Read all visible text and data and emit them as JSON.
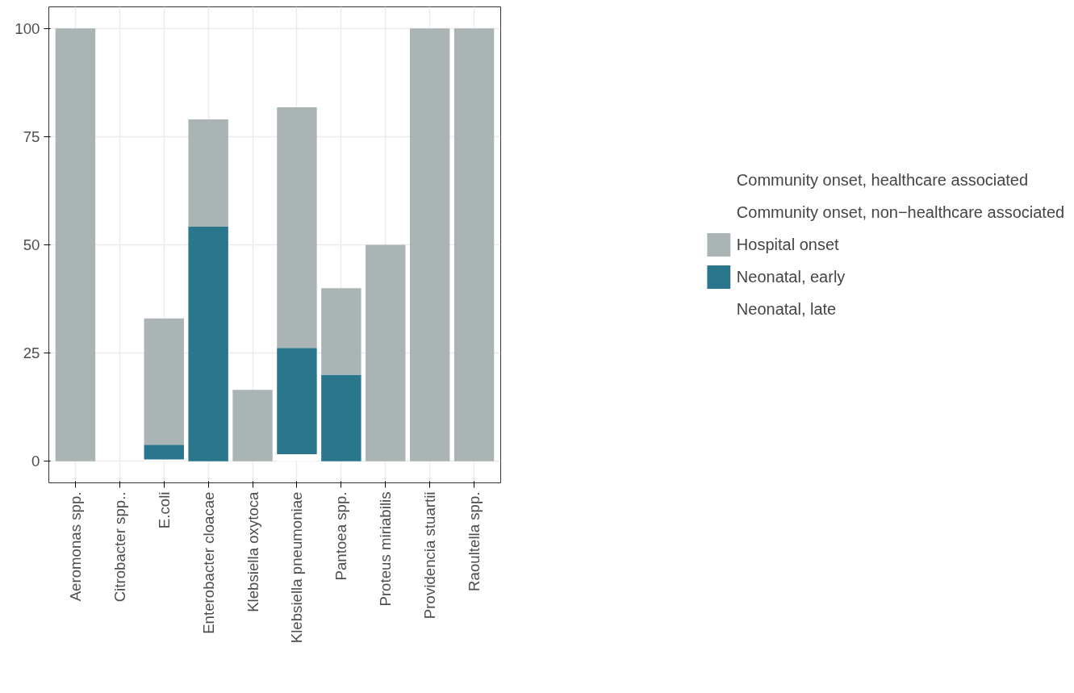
{
  "chart_data": {
    "type": "bar",
    "stacked": true,
    "categories": [
      "Aeromonas spp.",
      "Citrobacter spp..",
      "E.coli",
      "Enterobacter cloacae",
      "Klebsiella oxytoca",
      "Klebsiella pneumoniae",
      "Pantoea spp.",
      "Proteus miriabilis",
      "Providencia stuartii",
      "Raoultella spp."
    ],
    "series": [
      {
        "name": "Neonatal, late",
        "color": "#ffffff",
        "values": [
          null,
          null,
          0.4,
          null,
          null,
          1.6,
          null,
          null,
          null,
          null
        ]
      },
      {
        "name": "Neonatal, early",
        "color": "#2a768d",
        "values": [
          null,
          0,
          3.4,
          54.2,
          null,
          24.6,
          20,
          null,
          null,
          null
        ]
      },
      {
        "name": "Hospital onset",
        "color": "#abb4b5",
        "values": [
          100,
          0,
          29.2,
          24.8,
          16.5,
          55.6,
          20,
          50,
          100,
          100
        ]
      },
      {
        "name": "Community onset, non−healthcare associated",
        "values": [
          null,
          null,
          null,
          null,
          null,
          null,
          null,
          null,
          null,
          null
        ]
      },
      {
        "name": "Community onset, healthcare associated",
        "values": [
          null,
          null,
          null,
          null,
          null,
          null,
          null,
          null,
          null,
          null
        ]
      }
    ],
    "ylim": [
      -5,
      105
    ],
    "yticks": [
      0,
      25,
      50,
      75,
      100
    ],
    "grid": true,
    "legend": "right"
  }
}
